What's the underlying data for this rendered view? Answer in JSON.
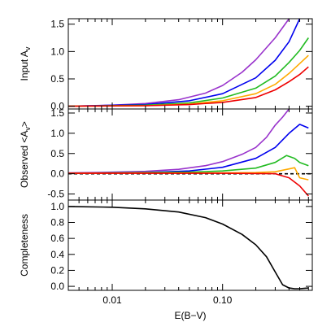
{
  "chart_data": [
    {
      "type": "line",
      "ylabel": "Input A",
      "ylabel_sub": "v",
      "xscale": "log",
      "xlim": [
        0.004,
        0.65
      ],
      "ylim": [
        -0.05,
        1.6
      ],
      "yticks": [
        "0.0",
        "0.5",
        "1.0",
        "1.5"
      ],
      "ytick_values": [
        0,
        0.5,
        1,
        1.5
      ],
      "series": [
        {
          "color": "#9933cc",
          "x": [
            0.004,
            0.01,
            0.02,
            0.04,
            0.07,
            0.1,
            0.15,
            0.2,
            0.3,
            0.4
          ],
          "y": [
            0,
            0.02,
            0.05,
            0.12,
            0.24,
            0.38,
            0.62,
            0.85,
            1.25,
            1.6
          ]
        },
        {
          "color": "#0000ee",
          "x": [
            0.004,
            0.02,
            0.05,
            0.1,
            0.2,
            0.3,
            0.4,
            0.5
          ],
          "y": [
            0,
            0.03,
            0.1,
            0.23,
            0.52,
            0.84,
            1.18,
            1.6
          ]
        },
        {
          "color": "#22bb22",
          "x": [
            0.004,
            0.02,
            0.05,
            0.1,
            0.2,
            0.3,
            0.4,
            0.5,
            0.6
          ],
          "y": [
            0,
            0.02,
            0.06,
            0.15,
            0.33,
            0.55,
            0.8,
            1.02,
            1.25
          ]
        },
        {
          "color": "#ffaa00",
          "x": [
            0.004,
            0.02,
            0.05,
            0.1,
            0.2,
            0.3,
            0.4,
            0.5,
            0.6
          ],
          "y": [
            0,
            0.01,
            0.04,
            0.1,
            0.23,
            0.4,
            0.6,
            0.78,
            0.93
          ]
        },
        {
          "color": "#ee0000",
          "x": [
            0.004,
            0.02,
            0.05,
            0.1,
            0.2,
            0.3,
            0.4,
            0.5,
            0.6
          ],
          "y": [
            0,
            0.01,
            0.03,
            0.07,
            0.16,
            0.3,
            0.45,
            0.58,
            0.72
          ]
        }
      ]
    },
    {
      "type": "line",
      "ylabel": "Observed  <A",
      "ylabel_sub": "v",
      "ylabel_end": ">",
      "xscale": "log",
      "xlim": [
        0.004,
        0.65
      ],
      "ylim": [
        -0.65,
        1.6
      ],
      "yticks": [
        "-0.5",
        "0.0",
        "0.5",
        "1.0",
        "1.5"
      ],
      "ytick_values": [
        -0.5,
        0,
        0.5,
        1,
        1.5
      ],
      "reference_line": {
        "y": 0,
        "style": "dashed",
        "color": "#000000"
      },
      "series": [
        {
          "color": "#9933cc",
          "x": [
            0.004,
            0.01,
            0.02,
            0.04,
            0.07,
            0.1,
            0.15,
            0.2,
            0.25,
            0.3,
            0.35,
            0.4
          ],
          "y": [
            0.02,
            0.04,
            0.06,
            0.11,
            0.2,
            0.3,
            0.48,
            0.65,
            0.9,
            1.2,
            1.4,
            1.6
          ]
        },
        {
          "color": "#0000ee",
          "x": [
            0.004,
            0.02,
            0.05,
            0.1,
            0.2,
            0.3,
            0.4,
            0.5,
            0.6
          ],
          "y": [
            0.01,
            0.03,
            0.07,
            0.16,
            0.38,
            0.65,
            1.0,
            1.22,
            1.13
          ]
        },
        {
          "color": "#22bb22",
          "x": [
            0.004,
            0.05,
            0.1,
            0.2,
            0.3,
            0.38,
            0.45,
            0.5,
            0.6
          ],
          "y": [
            0.01,
            0.04,
            0.07,
            0.14,
            0.28,
            0.45,
            0.38,
            0.28,
            0.2
          ]
        },
        {
          "color": "#ffaa00",
          "x": [
            0.004,
            0.1,
            0.2,
            0.3,
            0.4,
            0.45,
            0.5,
            0.6
          ],
          "y": [
            0.01,
            0.02,
            0.03,
            0.05,
            0.12,
            0.15,
            -0.1,
            -0.15
          ]
        },
        {
          "color": "#ee0000",
          "x": [
            0.004,
            0.1,
            0.3,
            0.4,
            0.5,
            0.6
          ],
          "y": [
            0.01,
            0.01,
            0.0,
            -0.1,
            -0.3,
            -0.55
          ]
        }
      ]
    },
    {
      "type": "line",
      "xlabel": "E(B−V)",
      "ylabel": "Completeness",
      "xscale": "log",
      "xlim": [
        0.004,
        0.65
      ],
      "ylim": [
        -0.05,
        1.08
      ],
      "xticks": [
        "0.01",
        "0.10"
      ],
      "xtick_values": [
        0.01,
        0.1
      ],
      "yticks": [
        "0.0",
        "0.2",
        "0.4",
        "0.6",
        "0.8",
        "1.0"
      ],
      "ytick_values": [
        0,
        0.2,
        0.4,
        0.6,
        0.8,
        1.0
      ],
      "series": [
        {
          "color": "#000000",
          "x": [
            0.004,
            0.01,
            0.02,
            0.04,
            0.07,
            0.1,
            0.15,
            0.2,
            0.25,
            0.3,
            0.35,
            0.4,
            0.45,
            0.5,
            0.6
          ],
          "y": [
            1.0,
            0.99,
            0.97,
            0.93,
            0.86,
            0.78,
            0.65,
            0.52,
            0.37,
            0.18,
            0.02,
            -0.02,
            -0.03,
            -0.03,
            -0.02
          ]
        }
      ]
    }
  ]
}
